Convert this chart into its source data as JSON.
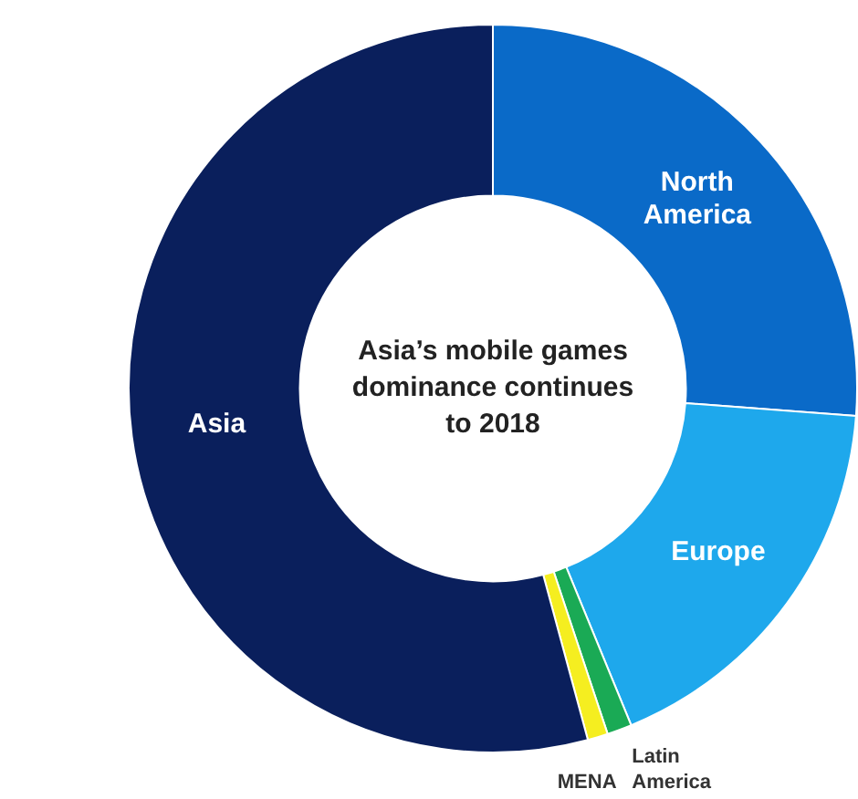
{
  "chart_data": {
    "type": "donut",
    "title": "Asia’s mobile games dominance continues to 2018",
    "categories": [
      "North America",
      "Europe",
      "Latin America",
      "MENA",
      "Asia"
    ],
    "values": [
      26.2,
      17.6,
      1.1,
      0.9,
      54.2
    ],
    "colors": [
      "#0a6ac8",
      "#1ea8ec",
      "#1aaa55",
      "#f5ee20",
      "#0a1f5c"
    ],
    "legend": false
  }
}
